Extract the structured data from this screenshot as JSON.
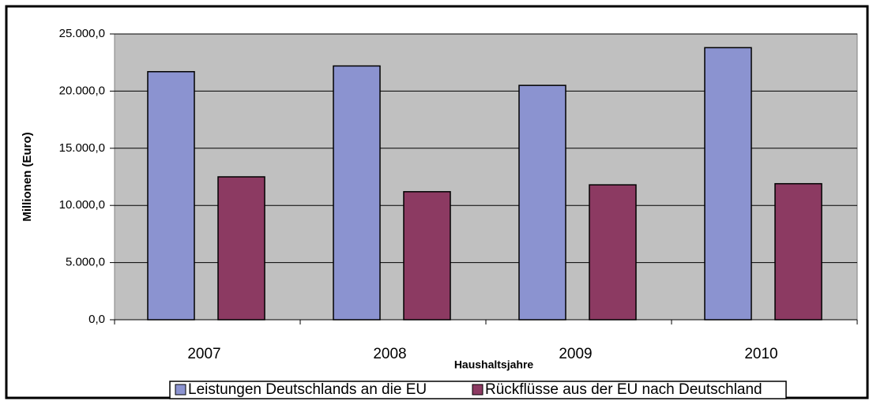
{
  "chart_data": {
    "type": "bar",
    "categories": [
      "2007",
      "2008",
      "2009",
      "2010"
    ],
    "series": [
      {
        "name": "Leistungen Deutschlands an die EU",
        "color": "#8b93d0",
        "values": [
          21700,
          22200,
          20500,
          23800
        ]
      },
      {
        "name": "Rückflüsse aus der EU nach Deutschland",
        "color": "#8c3a62",
        "values": [
          12500,
          11200,
          11800,
          11900
        ]
      }
    ],
    "ylabel": "Millionen (Euro)",
    "xlabel": "Haushaltsjahre",
    "ylim": [
      0,
      25000
    ],
    "yticks": [
      {
        "value": 0,
        "label": "0,0"
      },
      {
        "value": 5000,
        "label": "5.000,0"
      },
      {
        "value": 10000,
        "label": "10.000,0"
      },
      {
        "value": 15000,
        "label": "15.000,0"
      },
      {
        "value": 20000,
        "label": "20.000,0"
      },
      {
        "value": 25000,
        "label": "25.000,0"
      }
    ],
    "grid": true,
    "legend": "bottom"
  }
}
